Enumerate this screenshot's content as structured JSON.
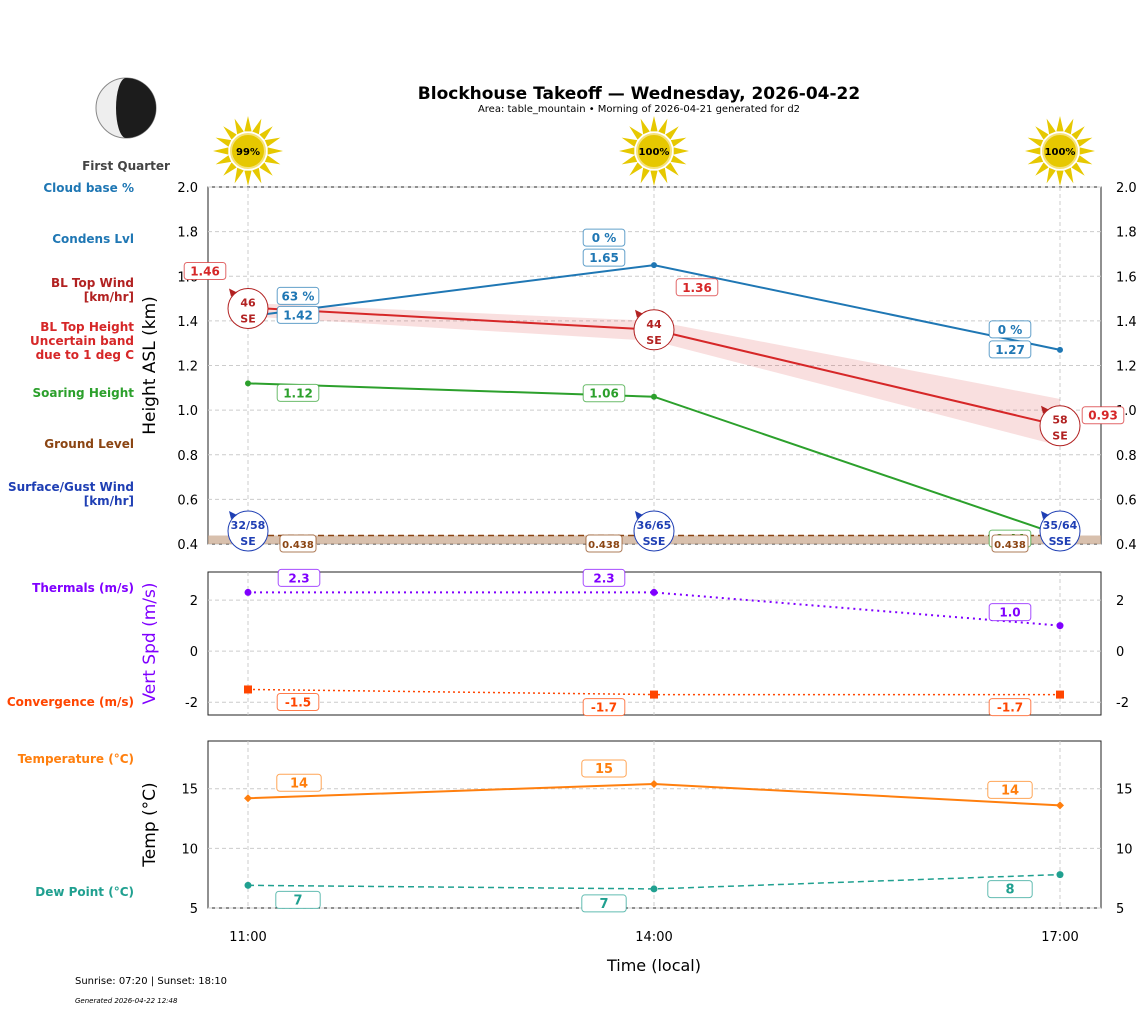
{
  "title": "Blockhouse Takeoff — Wednesday, 2026-04-22",
  "subtitle": "Area: table_mountain • Morning of 2026-04-21 generated for d2",
  "moon": {
    "phase": "First Quarter"
  },
  "footer": {
    "sun": "Sunrise: 07:20 | Sunset: 18:10",
    "generated": "Generated 2026-04-22 12:48"
  },
  "legend_labels": [
    {
      "text": "Cloud base %",
      "color": "#1f77b4"
    },
    {
      "text": "Condens Lvl",
      "color": "#1f77b4"
    },
    {
      "text": "BL Top Wind\n[km/hr]",
      "color": "#b22222"
    },
    {
      "text": "BL Top Height\nUncertain band\ndue to 1 deg C",
      "color": "#d62728"
    },
    {
      "text": "Soaring Height",
      "color": "#2ca02c"
    },
    {
      "text": "Ground Level",
      "color": "#8b4513"
    },
    {
      "text": "Surface/Gust Wind\n[km/hr]",
      "color": "#1f3fb4"
    },
    {
      "text": "Thermals (m/s)",
      "color": "#8000ff"
    },
    {
      "text": "Convergence (m/s)",
      "color": "#ff4500"
    },
    {
      "text": "Temperature (°C)",
      "color": "#ff7f0e"
    },
    {
      "text": "Dew Point (°C)",
      "color": "#20a090"
    }
  ],
  "chart_data": [
    {
      "type": "line",
      "ylabel": "Height ASL (km)",
      "ylim": [
        0.4,
        2.0
      ],
      "yticks": [
        "0.4",
        "0.6",
        "0.8",
        "1.0",
        "1.2",
        "1.4",
        "1.6",
        "1.8",
        "2.0"
      ],
      "grid": true,
      "x": [
        "11:00",
        "14:00",
        "17:00"
      ],
      "sun_percent": [
        "99%",
        "100%",
        "100%"
      ],
      "series": [
        {
          "key": "condens",
          "values": [
            1.42,
            1.65,
            1.27
          ],
          "labels": [
            "1.42",
            "1.65",
            "1.27"
          ],
          "cloud_pct": [
            "63 %",
            "0 %",
            "0 %"
          ],
          "color": "#1f77b4"
        },
        {
          "key": "bl_top",
          "values": [
            1.46,
            1.36,
            0.93
          ],
          "band_low": [
            1.42,
            1.31,
            0.84
          ],
          "band_high": [
            1.48,
            1.4,
            1.05
          ],
          "labels": [
            "1.46",
            "1.36",
            "0.93"
          ],
          "color": "#d62728"
        },
        {
          "key": "soaring",
          "values": [
            1.12,
            1.06,
            0.44
          ],
          "labels": [
            "1.12",
            "1.06",
            "0.44"
          ],
          "color": "#2ca02c"
        },
        {
          "key": "ground",
          "values": [
            0.438,
            0.438,
            0.438
          ],
          "labels": [
            "0.438",
            "0.438",
            "0.438"
          ],
          "color": "#8b4513"
        }
      ],
      "bl_wind": [
        {
          "speed": "46",
          "dir": "SE"
        },
        {
          "speed": "44",
          "dir": "SE"
        },
        {
          "speed": "58",
          "dir": "SE"
        }
      ],
      "surface_wind": [
        {
          "speed": "32/58",
          "dir": "SE"
        },
        {
          "speed": "36/65",
          "dir": "SSE"
        },
        {
          "speed": "35/64",
          "dir": "SSE"
        }
      ]
    },
    {
      "type": "line",
      "ylabel": "Vert Spd (m/s)",
      "ylim": [
        -2.5,
        3.1
      ],
      "yticks": [
        "-2",
        "0",
        "2"
      ],
      "grid": true,
      "series": [
        {
          "key": "thermals",
          "values": [
            2.3,
            2.3,
            1.0
          ],
          "labels": [
            "2.3",
            "2.3",
            "1.0"
          ],
          "color": "#8000ff"
        },
        {
          "key": "convergence",
          "values": [
            -1.5,
            -1.7,
            -1.7
          ],
          "labels": [
            "-1.5",
            "-1.7",
            "-1.7"
          ],
          "color": "#ff4500"
        }
      ]
    },
    {
      "type": "line",
      "ylabel": "Temp (°C)",
      "xlabel": "Time (local)",
      "ylim": [
        5,
        19
      ],
      "yticks": [
        "5",
        "10",
        "15"
      ],
      "xticks": [
        "11:00",
        "14:00",
        "17:00"
      ],
      "grid": true,
      "series": [
        {
          "key": "temperature",
          "values": [
            14.2,
            15.4,
            13.6
          ],
          "labels": [
            "14",
            "15",
            "14"
          ],
          "color": "#ff7f0e"
        },
        {
          "key": "dewpoint",
          "values": [
            6.9,
            6.6,
            7.8
          ],
          "labels": [
            "7",
            "7",
            "8"
          ],
          "color": "#20a090"
        }
      ]
    }
  ]
}
